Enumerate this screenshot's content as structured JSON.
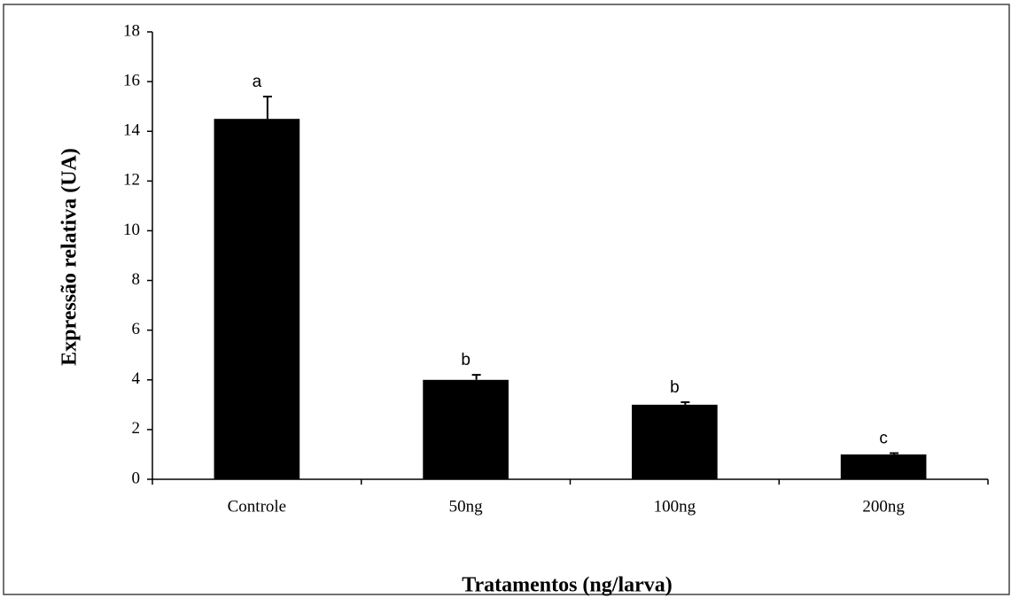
{
  "chart_data": {
    "type": "bar",
    "ylabel": "Expressão relativa (UA)",
    "xlabel": "Tratamentos (ng/larva)",
    "categories": [
      "Controle",
      "50ng",
      "100ng",
      "200ng"
    ],
    "values": [
      14.5,
      4.0,
      3.0,
      1.0
    ],
    "errors": [
      0.9,
      0.2,
      0.1,
      0.05
    ],
    "annotations": [
      "a",
      "b",
      "b",
      "c"
    ],
    "color": "#000000",
    "ylim": [
      0,
      18
    ],
    "yticks": [
      0,
      2,
      4,
      6,
      8,
      10,
      12,
      14,
      16,
      18
    ]
  }
}
